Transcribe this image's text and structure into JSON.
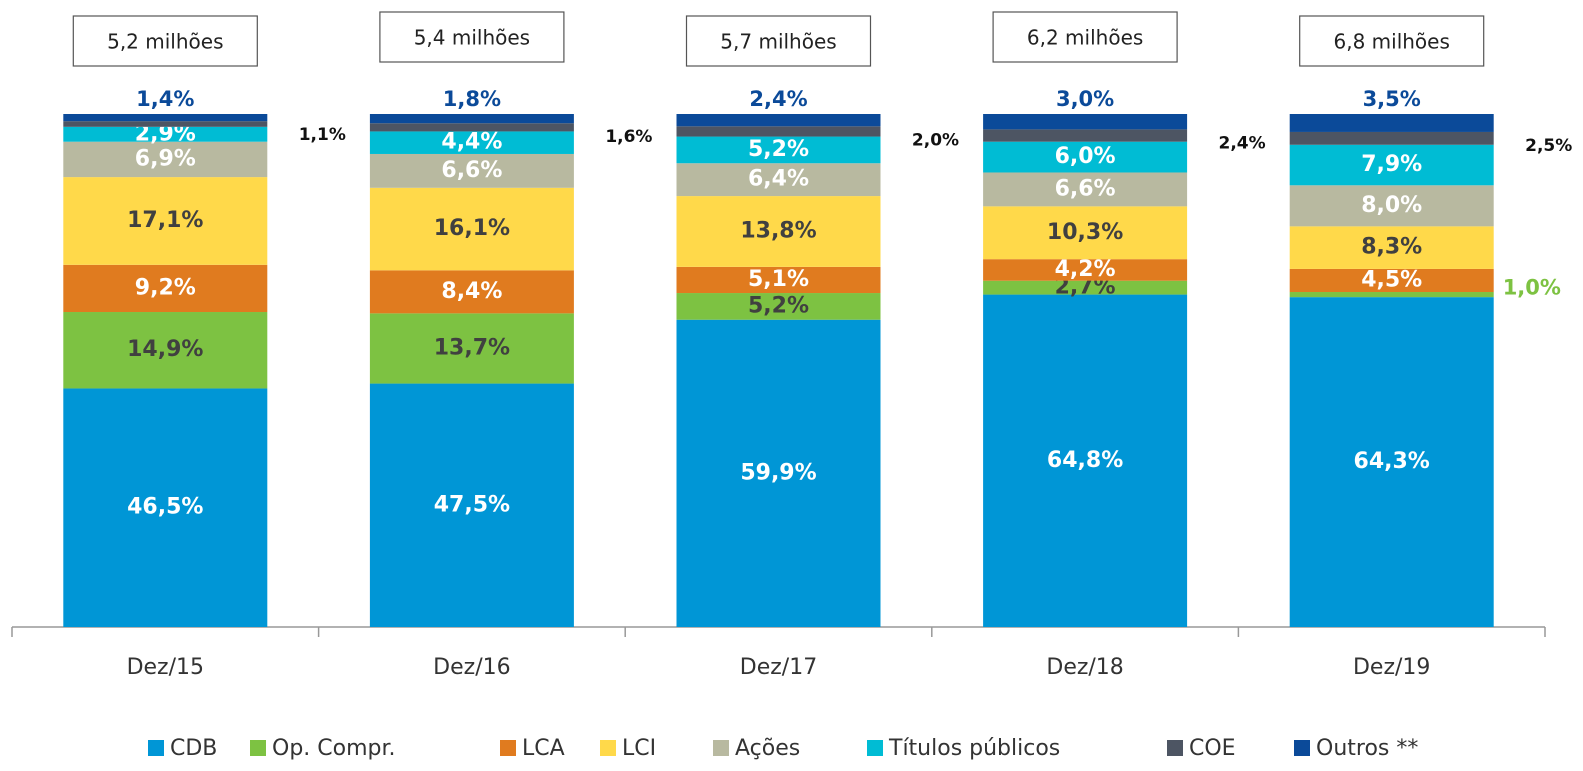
{
  "chart_data": {
    "type": "stacked_bar",
    "categories": [
      "Dez/15",
      "Dez/16",
      "Dez/17",
      "Dez/18",
      "Dez/19"
    ],
    "annotations": [
      "5,2 milhões",
      "5,4 milhões",
      "5,7 milhões",
      "6,2 milhões",
      "6,8 milhões"
    ],
    "series": [
      {
        "name": "CDB",
        "color": "#0096d6",
        "values": [
          46.5,
          47.5,
          59.9,
          64.8,
          64.3
        ],
        "value_labels": [
          "46,5%",
          "47,5%",
          "59,9%",
          "64,8%",
          "64,3%"
        ]
      },
      {
        "name": "Op. Compr.",
        "color": "#7dc242",
        "values": [
          14.9,
          13.7,
          5.2,
          2.7,
          1.0
        ],
        "value_labels": [
          "14,9%",
          "13,7%",
          "5,2%",
          "2,7%",
          "1,0%"
        ]
      },
      {
        "name": "LCA",
        "color": "#e07b1f",
        "values": [
          9.2,
          8.4,
          5.1,
          4.2,
          4.5
        ],
        "value_labels": [
          "9,2%",
          "8,4%",
          "5,1%",
          "4,2%",
          "4,5%"
        ]
      },
      {
        "name": "LCI",
        "color": "#ffd94a",
        "values": [
          17.1,
          16.1,
          13.8,
          10.3,
          8.3
        ],
        "value_labels": [
          "17,1%",
          "16,1%",
          "13,8%",
          "10,3%",
          "8,3%"
        ]
      },
      {
        "name": "Ações",
        "color": "#b8b9a0",
        "values": [
          6.9,
          6.6,
          6.4,
          6.6,
          8.0
        ],
        "value_labels": [
          "6,9%",
          "6,6%",
          "6,4%",
          "6,6%",
          "8,0%"
        ]
      },
      {
        "name": "Títulos públicos",
        "color": "#00bcd4",
        "values": [
          2.9,
          4.4,
          5.2,
          6.0,
          7.9
        ],
        "value_labels": [
          "2,9%",
          "4,4%",
          "5,2%",
          "6,0%",
          "7,9%"
        ]
      },
      {
        "name": "COE",
        "color": "#4d5563",
        "values": [
          1.1,
          1.6,
          2.0,
          2.4,
          2.5
        ],
        "value_labels": [
          "1,1%",
          "1,6%",
          "2,0%",
          "2,4%",
          "2,5%"
        ]
      },
      {
        "name": "Outros **",
        "color": "#0b4a99",
        "values": [
          1.4,
          1.8,
          2.4,
          3.0,
          3.5
        ],
        "value_labels": [
          "1,4%",
          "1,8%",
          "2,4%",
          "3,0%",
          "3,5%"
        ]
      }
    ]
  }
}
